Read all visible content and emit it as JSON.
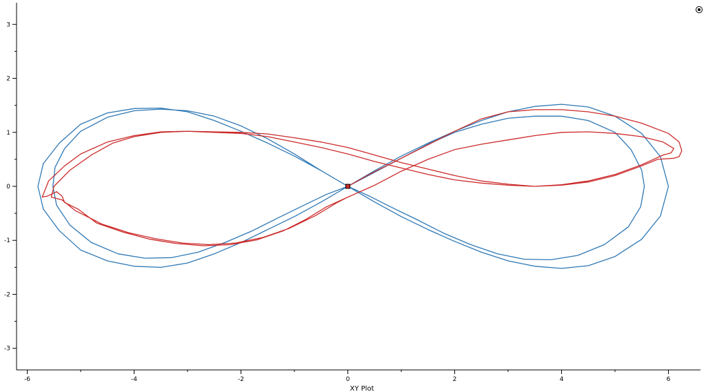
{
  "chart_data": {
    "type": "line",
    "title": "",
    "xlabel": "XY Plot",
    "ylabel": "",
    "xlim": [
      -6.2,
      6.6
    ],
    "ylim": [
      -3.4,
      3.4
    ],
    "x_ticks": [
      -6,
      -4,
      -2,
      0,
      2,
      4,
      6
    ],
    "x_tick_labels": [
      "-6",
      "-4",
      "-2",
      "0",
      "2",
      "4",
      "6"
    ],
    "x_minor_step": 1,
    "y_ticks": [
      3,
      2,
      1,
      0,
      -1,
      -2,
      -3
    ],
    "y_tick_labels": [
      "3",
      "2",
      "1",
      "0",
      "-1",
      "-2",
      "-3"
    ],
    "y_minor_step": 0.5,
    "grid": false,
    "legend": "none",
    "marker_point": [
      0,
      0
    ],
    "series": [
      {
        "color": "#2e78b5",
        "points": [
          [
            0,
            0
          ],
          [
            0.5,
            0.29
          ],
          [
            1,
            0.56
          ],
          [
            1.5,
            0.8
          ],
          [
            2,
            1.02
          ],
          [
            2.5,
            1.22
          ],
          [
            3,
            1.38
          ],
          [
            3.5,
            1.48
          ],
          [
            4,
            1.52
          ],
          [
            4.5,
            1.47
          ],
          [
            5,
            1.3
          ],
          [
            5.5,
            0.98
          ],
          [
            5.85,
            0.55
          ],
          [
            6,
            0
          ],
          [
            5.85,
            -0.55
          ],
          [
            5.5,
            -0.98
          ],
          [
            5,
            -1.3
          ],
          [
            4.5,
            -1.47
          ],
          [
            4,
            -1.52
          ],
          [
            3.5,
            -1.48
          ],
          [
            3,
            -1.38
          ],
          [
            2.5,
            -1.22
          ],
          [
            2,
            -1.02
          ],
          [
            1.5,
            -0.8
          ],
          [
            1,
            -0.56
          ],
          [
            0.5,
            -0.29
          ],
          [
            0,
            0
          ],
          [
            -0.5,
            0.29
          ],
          [
            -1,
            0.56
          ],
          [
            -1.5,
            0.8
          ],
          [
            -2,
            1.02
          ],
          [
            -2.5,
            1.22
          ],
          [
            -3,
            1.38
          ],
          [
            -3.5,
            1.45
          ],
          [
            -4,
            1.44
          ],
          [
            -4.5,
            1.36
          ],
          [
            -5,
            1.15
          ],
          [
            -5.4,
            0.8
          ],
          [
            -5.7,
            0.42
          ],
          [
            -5.8,
            0
          ],
          [
            -5.7,
            -0.42
          ],
          [
            -5.4,
            -0.82
          ],
          [
            -5,
            -1.18
          ],
          [
            -4.5,
            -1.38
          ],
          [
            -4,
            -1.48
          ],
          [
            -3.5,
            -1.5
          ],
          [
            -3,
            -1.42
          ],
          [
            -2.5,
            -1.25
          ],
          [
            -2,
            -1.04
          ],
          [
            -1.5,
            -0.8
          ],
          [
            -1,
            -0.56
          ],
          [
            -0.5,
            -0.29
          ],
          [
            0,
            0
          ],
          [
            0.5,
            0.26
          ],
          [
            1,
            0.52
          ],
          [
            1.5,
            0.78
          ],
          [
            2,
            1
          ],
          [
            2.5,
            1.15
          ],
          [
            3,
            1.26
          ],
          [
            3.5,
            1.3
          ],
          [
            4,
            1.3
          ],
          [
            4.5,
            1.22
          ],
          [
            5,
            1
          ],
          [
            5.3,
            0.68
          ],
          [
            5.5,
            0.3
          ],
          [
            5.55,
            0
          ],
          [
            5.48,
            -0.38
          ],
          [
            5.25,
            -0.75
          ],
          [
            4.8,
            -1.08
          ],
          [
            4.3,
            -1.28
          ],
          [
            3.8,
            -1.36
          ],
          [
            3.3,
            -1.35
          ],
          [
            2.8,
            -1.25
          ],
          [
            2.3,
            -1.08
          ],
          [
            1.8,
            -0.87
          ],
          [
            1.3,
            -0.62
          ],
          [
            0.8,
            -0.38
          ],
          [
            0.4,
            -0.18
          ],
          [
            0,
            0
          ],
          [
            -0.5,
            0.29
          ],
          [
            -1,
            0.6
          ],
          [
            -1.5,
            0.88
          ],
          [
            -2,
            1.12
          ],
          [
            -2.5,
            1.3
          ],
          [
            -3,
            1.4
          ],
          [
            -3.5,
            1.43
          ],
          [
            -4,
            1.4
          ],
          [
            -4.5,
            1.28
          ],
          [
            -5,
            1.02
          ],
          [
            -5.3,
            0.7
          ],
          [
            -5.48,
            0.35
          ],
          [
            -5.52,
            0
          ],
          [
            -5.45,
            -0.35
          ],
          [
            -5.2,
            -0.72
          ],
          [
            -4.8,
            -1.04
          ],
          [
            -4.3,
            -1.25
          ],
          [
            -3.8,
            -1.33
          ],
          [
            -3.3,
            -1.32
          ],
          [
            -2.8,
            -1.22
          ],
          [
            -2.3,
            -1.04
          ],
          [
            -1.8,
            -0.83
          ],
          [
            -1.3,
            -0.58
          ],
          [
            -0.8,
            -0.34
          ],
          [
            -0.4,
            -0.15
          ],
          [
            0,
            0
          ]
        ]
      },
      {
        "color": "#cc2b2b",
        "points": [
          [
            0,
            0
          ],
          [
            0.4,
            0.22
          ],
          [
            1,
            0.52
          ],
          [
            1.5,
            0.77
          ],
          [
            2,
            1.02
          ],
          [
            2.5,
            1.25
          ],
          [
            3,
            1.38
          ],
          [
            3.5,
            1.42
          ],
          [
            4,
            1.42
          ],
          [
            4.5,
            1.38
          ],
          [
            5,
            1.3
          ],
          [
            5.5,
            1.17
          ],
          [
            6,
            0.98
          ],
          [
            6.2,
            0.82
          ],
          [
            6.25,
            0.66
          ],
          [
            6.2,
            0.55
          ],
          [
            6.1,
            0.52
          ],
          [
            5.8,
            0.5
          ],
          [
            5.5,
            0.38
          ],
          [
            5,
            0.2
          ],
          [
            4.5,
            0.08
          ],
          [
            4,
            0.02
          ],
          [
            3.5,
            0
          ],
          [
            3,
            0.02
          ],
          [
            2.5,
            0.06
          ],
          [
            2,
            0.12
          ],
          [
            1.5,
            0.22
          ],
          [
            1,
            0.34
          ],
          [
            0.5,
            0.46
          ],
          [
            0,
            0.6
          ],
          [
            -0.5,
            0.72
          ],
          [
            -1,
            0.82
          ],
          [
            -1.5,
            0.92
          ],
          [
            -2,
            0.98
          ],
          [
            -2.5,
            1
          ],
          [
            -3,
            1.02
          ],
          [
            -3.5,
            1.01
          ],
          [
            -4,
            0.94
          ],
          [
            -4.5,
            0.82
          ],
          [
            -5,
            0.6
          ],
          [
            -5.3,
            0.38
          ],
          [
            -5.6,
            0.1
          ],
          [
            -5.72,
            -0.2
          ],
          [
            -5.62,
            -0.18
          ],
          [
            -5.45,
            -0.1
          ],
          [
            -5.35,
            -0.18
          ],
          [
            -5.3,
            -0.3
          ],
          [
            -5.05,
            -0.42
          ],
          [
            -4.7,
            -0.68
          ],
          [
            -4.2,
            -0.85
          ],
          [
            -3.7,
            -0.98
          ],
          [
            -3.2,
            -1.06
          ],
          [
            -2.7,
            -1.1
          ],
          [
            -2.2,
            -1.08
          ],
          [
            -1.7,
            -0.99
          ],
          [
            -1.2,
            -0.82
          ],
          [
            -0.8,
            -0.62
          ],
          [
            -0.4,
            -0.38
          ],
          [
            0,
            -0.2
          ],
          [
            0.5,
            0.02
          ],
          [
            1,
            0.28
          ],
          [
            1.5,
            0.5
          ],
          [
            2,
            0.68
          ],
          [
            2.5,
            0.78
          ],
          [
            3,
            0.86
          ],
          [
            3.5,
            0.94
          ],
          [
            4,
            1
          ],
          [
            4.5,
            1.01
          ],
          [
            5,
            0.98
          ],
          [
            5.5,
            0.92
          ],
          [
            5.9,
            0.82
          ],
          [
            6.1,
            0.7
          ],
          [
            6.05,
            0.62
          ],
          [
            5.9,
            0.58
          ],
          [
            5.5,
            0.4
          ],
          [
            5,
            0.22
          ],
          [
            4.5,
            0.1
          ],
          [
            4,
            0.03
          ],
          [
            3.5,
            0
          ],
          [
            3,
            0.04
          ],
          [
            2.5,
            0.1
          ],
          [
            2,
            0.2
          ],
          [
            1.5,
            0.32
          ],
          [
            1,
            0.44
          ],
          [
            0.5,
            0.58
          ],
          [
            0,
            0.72
          ],
          [
            -0.5,
            0.82
          ],
          [
            -1,
            0.9
          ],
          [
            -1.5,
            0.97
          ],
          [
            -2,
            1
          ],
          [
            -2.5,
            1.01
          ],
          [
            -3,
            1.02
          ],
          [
            -3.5,
            1.0
          ],
          [
            -4,
            0.92
          ],
          [
            -4.4,
            0.8
          ],
          [
            -4.8,
            0.58
          ],
          [
            -5.2,
            0.3
          ],
          [
            -5.5,
            0
          ],
          [
            -5.55,
            -0.2
          ],
          [
            -5.35,
            -0.25
          ],
          [
            -5.1,
            -0.45
          ],
          [
            -4.6,
            -0.7
          ],
          [
            -4.1,
            -0.86
          ],
          [
            -3.6,
            -0.97
          ],
          [
            -3.1,
            -1.05
          ],
          [
            -2.6,
            -1.08
          ],
          [
            -2.1,
            -1.05
          ],
          [
            -1.6,
            -0.95
          ],
          [
            -1.1,
            -0.78
          ],
          [
            -0.6,
            -0.54
          ],
          [
            -0.2,
            -0.3
          ],
          [
            0,
            -0.2
          ]
        ]
      }
    ]
  },
  "toolbar": {
    "target_icon": "target-icon"
  }
}
